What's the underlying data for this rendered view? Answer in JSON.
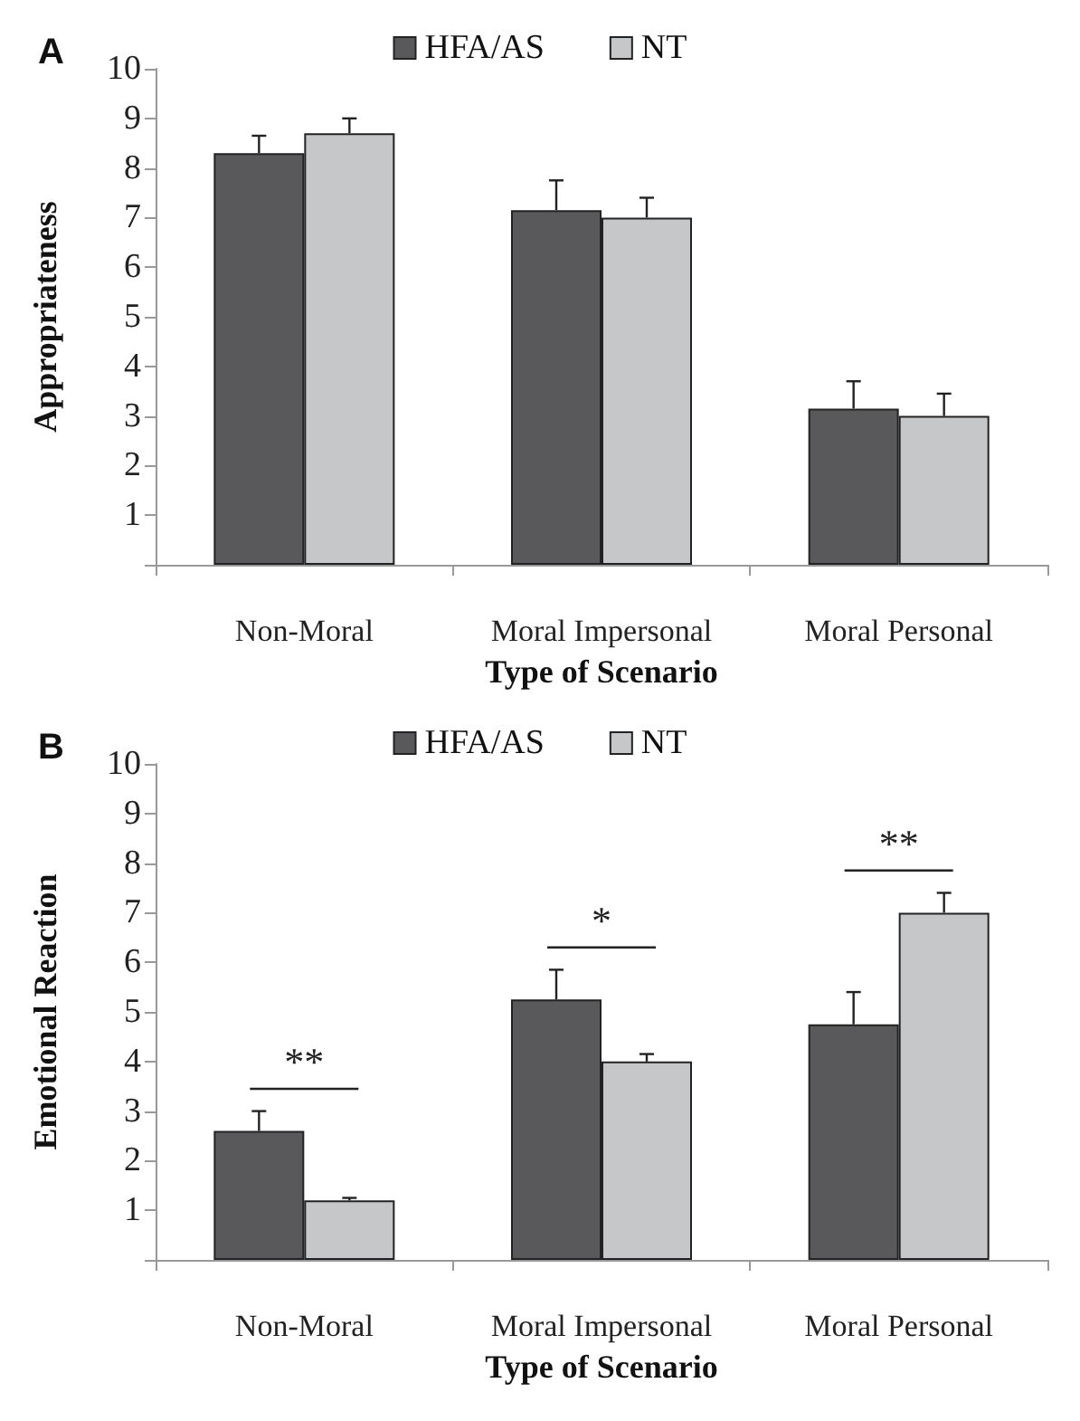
{
  "chart_data": [
    {
      "type": "bar",
      "title": "A",
      "xlabel": "Type of Scenario",
      "ylabel": "Appropriateness",
      "categories": [
        "Non-Moral",
        "Moral Impersonal",
        "Moral Personal"
      ],
      "series": [
        {
          "name": "HFA/AS",
          "color": "#59595b",
          "values": [
            8.3,
            7.15,
            3.15
          ],
          "errors": [
            [
              8.3,
              8.65
            ],
            [
              7.15,
              7.75
            ],
            [
              3.15,
              3.7
            ]
          ]
        },
        {
          "name": "NT",
          "color": "#c6c7c9",
          "values": [
            8.7,
            7.0,
            3.0
          ],
          "errors": [
            [
              8.7,
              9.0
            ],
            [
              7.0,
              7.4
            ],
            [
              3.0,
              3.45
            ]
          ]
        }
      ],
      "ylim": [
        0,
        10
      ],
      "yticks": [
        {
          "value": 0,
          "label": null
        },
        1,
        2,
        3,
        4,
        5,
        6,
        7,
        8,
        9,
        10
      ],
      "grid": false,
      "legend": "top"
    },
    {
      "type": "bar",
      "title": "B",
      "xlabel": "Type of Scenario",
      "ylabel": "Emotional Reaction",
      "categories": [
        "Non-Moral",
        "Moral Impersonal",
        "Moral Personal"
      ],
      "series": [
        {
          "name": "HFA/AS",
          "color": "#59595b",
          "values": [
            2.6,
            5.25,
            4.75
          ],
          "errors": [
            [
              2.6,
              3.0
            ],
            [
              5.25,
              5.85
            ],
            [
              4.75,
              5.4
            ]
          ]
        },
        {
          "name": "NT",
          "color": "#c6c7c9",
          "values": [
            1.2,
            4.0,
            7.0
          ],
          "errors": [
            [
              1.2,
              1.25
            ],
            [
              4.0,
              4.15
            ],
            [
              7.0,
              7.4
            ]
          ]
        }
      ],
      "annotations": [
        "**",
        "*",
        "**"
      ],
      "ylim": [
        0,
        10
      ],
      "yticks": [
        {
          "value": 0,
          "label": null
        },
        1,
        2,
        3,
        4,
        5,
        6,
        7,
        8,
        9,
        10
      ],
      "grid": false,
      "legend": "top"
    }
  ]
}
